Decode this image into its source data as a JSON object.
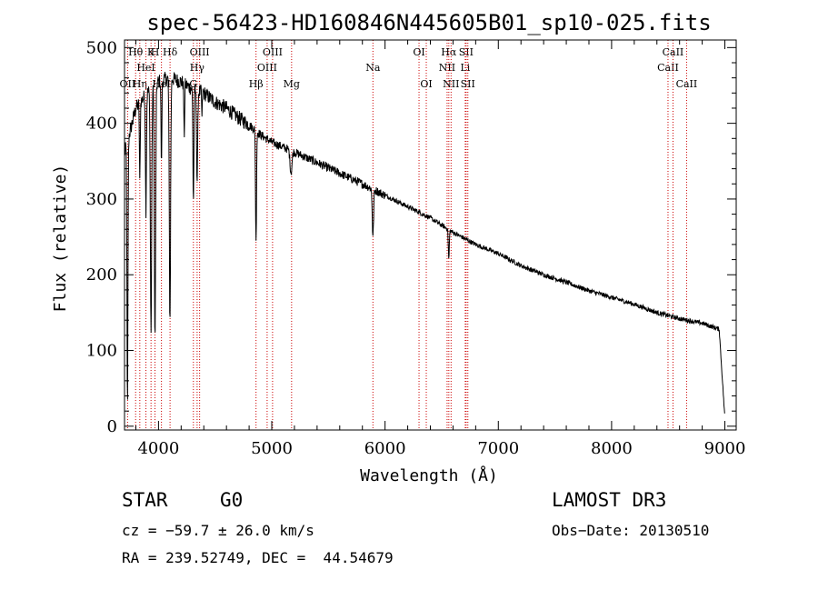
{
  "chart_data": {
    "type": "line",
    "title": "spec-56423-HD160846N445605B01_sp10-025.fits",
    "xlabel": "Wavelength (Å)",
    "ylabel": "Flux (relative)",
    "xlim": [
      3700,
      9100
    ],
    "ylim": [
      -5,
      510
    ],
    "xticks": [
      4000,
      5000,
      6000,
      7000,
      8000,
      9000
    ],
    "yticks": [
      0,
      100,
      200,
      300,
      400,
      500
    ],
    "series": [
      {
        "name": "spectrum",
        "continuum": [
          [
            3700,
            360
          ],
          [
            3800,
            420
          ],
          [
            3900,
            440
          ],
          [
            4000,
            455
          ],
          [
            4100,
            460
          ],
          [
            4200,
            455
          ],
          [
            4300,
            445
          ],
          [
            4400,
            440
          ],
          [
            4500,
            428
          ],
          [
            4600,
            420
          ],
          [
            4700,
            408
          ],
          [
            4800,
            398
          ],
          [
            4900,
            385
          ],
          [
            5000,
            375
          ],
          [
            5200,
            362
          ],
          [
            5400,
            348
          ],
          [
            5600,
            334
          ],
          [
            5800,
            320
          ],
          [
            6000,
            305
          ],
          [
            6200,
            290
          ],
          [
            6400,
            275
          ],
          [
            6600,
            256
          ],
          [
            6800,
            240
          ],
          [
            7000,
            228
          ],
          [
            7200,
            212
          ],
          [
            7400,
            200
          ],
          [
            7600,
            190
          ],
          [
            7800,
            179
          ],
          [
            8000,
            170
          ],
          [
            8200,
            161
          ],
          [
            8400,
            150
          ],
          [
            8600,
            142
          ],
          [
            8800,
            136
          ],
          [
            8950,
            128
          ],
          [
            9000,
            10
          ]
        ],
        "absorption_lines": [
          {
            "center": 3726,
            "depth": 0.95,
            "width": 6
          },
          {
            "center": 3835,
            "depth": 0.25,
            "width": 5
          },
          {
            "center": 3889,
            "depth": 0.35,
            "width": 6
          },
          {
            "center": 3934,
            "depth": 0.73,
            "width": 8
          },
          {
            "center": 3969,
            "depth": 0.75,
            "width": 8
          },
          {
            "center": 4026,
            "depth": 0.25,
            "width": 5
          },
          {
            "center": 4101,
            "depth": 0.7,
            "width": 8
          },
          {
            "center": 4227,
            "depth": 0.15,
            "width": 5
          },
          {
            "center": 4308,
            "depth": 0.33,
            "width": 6
          },
          {
            "center": 4341,
            "depth": 0.27,
            "width": 7
          },
          {
            "center": 4384,
            "depth": 0.08,
            "width": 4
          },
          {
            "center": 4861,
            "depth": 0.38,
            "width": 6
          },
          {
            "center": 5170,
            "depth": 0.08,
            "width": 12
          },
          {
            "center": 5893,
            "depth": 0.2,
            "width": 8
          },
          {
            "center": 6563,
            "depth": 0.15,
            "width": 6
          }
        ],
        "noise_amplitude": 9
      }
    ],
    "lines": [
      {
        "x": 3727,
        "label": "OII",
        "row": 3
      },
      {
        "x": 3798,
        "label": "Hθ",
        "row": 1
      },
      {
        "x": 3835,
        "label": "Hη",
        "row": 3
      },
      {
        "x": 3889,
        "label": "HeI",
        "row": 2
      },
      {
        "x": 3934,
        "label": "K",
        "row": 1
      },
      {
        "x": 3969,
        "label": "H",
        "row": 1
      },
      {
        "x": 4026,
        "label": "HeI",
        "row": 3
      },
      {
        "x": 4102,
        "label": "Hδ",
        "row": 1
      },
      {
        "x": 4308,
        "label": "G",
        "row": 3
      },
      {
        "x": 4341,
        "label": "Hγ",
        "row": 2
      },
      {
        "x": 4363,
        "label": "OIII",
        "row": 1
      },
      {
        "x": 4861,
        "label": "Hβ",
        "row": 3
      },
      {
        "x": 4959,
        "label": "OIII",
        "row": 2
      },
      {
        "x": 5007,
        "label": "OIII",
        "row": 1
      },
      {
        "x": 5175,
        "label": "Mg",
        "row": 3
      },
      {
        "x": 5893,
        "label": "Na",
        "row": 2
      },
      {
        "x": 6300,
        "label": "OI",
        "row": 1
      },
      {
        "x": 6364,
        "label": "OI",
        "row": 3
      },
      {
        "x": 6548,
        "label": "NII",
        "row": 2
      },
      {
        "x": 6563,
        "label": "Hα",
        "row": 1
      },
      {
        "x": 6583,
        "label": "NII",
        "row": 3
      },
      {
        "x": 6708,
        "label": "Li",
        "row": 2
      },
      {
        "x": 6716,
        "label": "SII",
        "row": 1
      },
      {
        "x": 6731,
        "label": "SII",
        "row": 3
      },
      {
        "x": 8498,
        "label": "CaII",
        "row": 2
      },
      {
        "x": 8542,
        "label": "CaII",
        "row": 1
      },
      {
        "x": 8662,
        "label": "CaII",
        "row": 3
      }
    ],
    "line_color": "#cc0000"
  },
  "info": {
    "object_class": "STAR",
    "subclass": "G0",
    "survey": "LAMOST DR3",
    "cz": "cz = −59.7 ± 26.0 km/s",
    "obs_date": "Obs−Date: 20130510",
    "coords": "RA = 239.52749, DEC =  44.54679"
  }
}
